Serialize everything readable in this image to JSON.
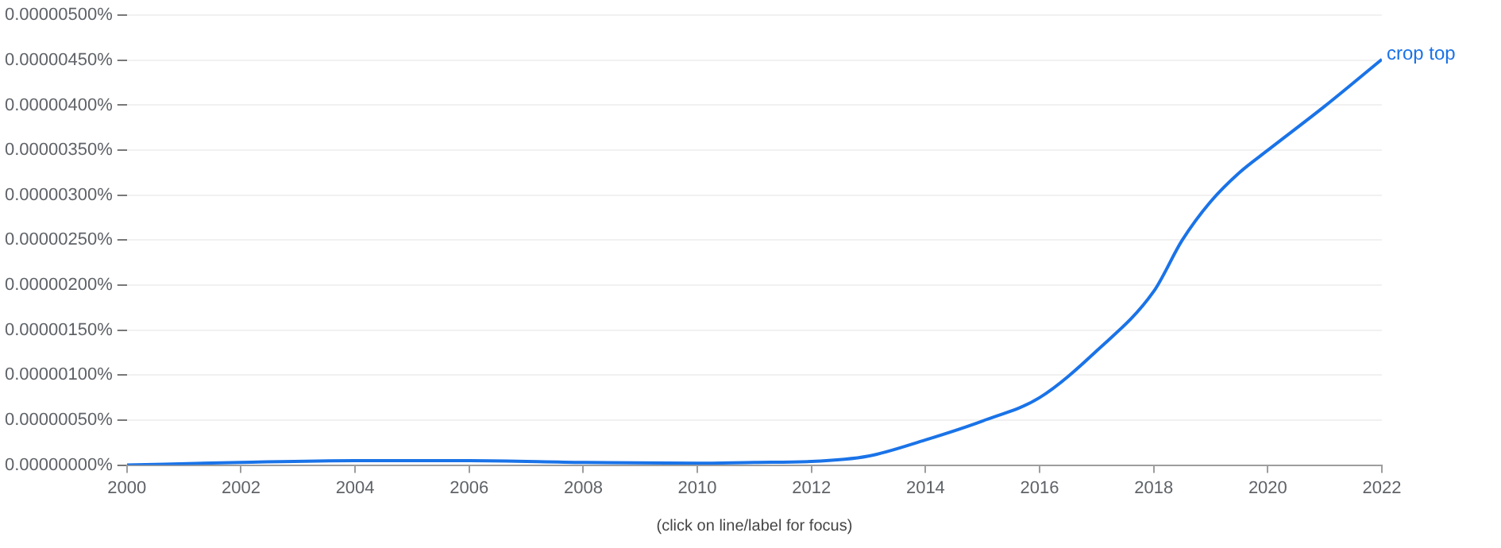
{
  "chart_data": {
    "type": "line",
    "xlabel": "(click on line/label for focus)",
    "x": [
      2000,
      2002,
      2004,
      2006,
      2008,
      2010,
      2011,
      2012,
      2013,
      2014,
      2015,
      2016,
      2017,
      2018,
      2018.5,
      2019,
      2019.5,
      2020,
      2021,
      2022
    ],
    "series": [
      {
        "name": "crop top",
        "color": "#1a73e8",
        "values": [
          0.0,
          3e-08,
          5e-08,
          5e-08,
          3e-08,
          2e-08,
          3e-08,
          4e-08,
          1e-07,
          2.8e-07,
          4.9e-07,
          7.5e-07,
          1.27e-06,
          1.93e-06,
          2.5e-06,
          2.93e-06,
          3.25e-06,
          3.5e-06,
          3.99e-06,
          4.51e-06
        ]
      }
    ],
    "xlim": [
      2000,
      2022
    ],
    "xticks": [
      2000,
      2002,
      2004,
      2006,
      2008,
      2010,
      2012,
      2014,
      2016,
      2018,
      2020,
      2022
    ],
    "ylim": [
      0,
      5e-06
    ],
    "yticks": [
      {
        "value": 0,
        "label": "0.00000000%"
      },
      {
        "value": 5e-07,
        "label": "0.00000050%"
      },
      {
        "value": 1e-06,
        "label": "0.00000100%"
      },
      {
        "value": 1.5e-06,
        "label": "0.00000150%"
      },
      {
        "value": 2e-06,
        "label": "0.00000200%"
      },
      {
        "value": 2.5e-06,
        "label": "0.00000250%"
      },
      {
        "value": 3e-06,
        "label": "0.00000300%"
      },
      {
        "value": 3.5e-06,
        "label": "0.00000350%"
      },
      {
        "value": 4e-06,
        "label": "0.00000400%"
      },
      {
        "value": 4.5e-06,
        "label": "0.00000450%"
      },
      {
        "value": 5e-06,
        "label": "0.00000500%"
      }
    ],
    "grid": "y",
    "legend": false,
    "marker": "none",
    "line_style": "solid"
  }
}
